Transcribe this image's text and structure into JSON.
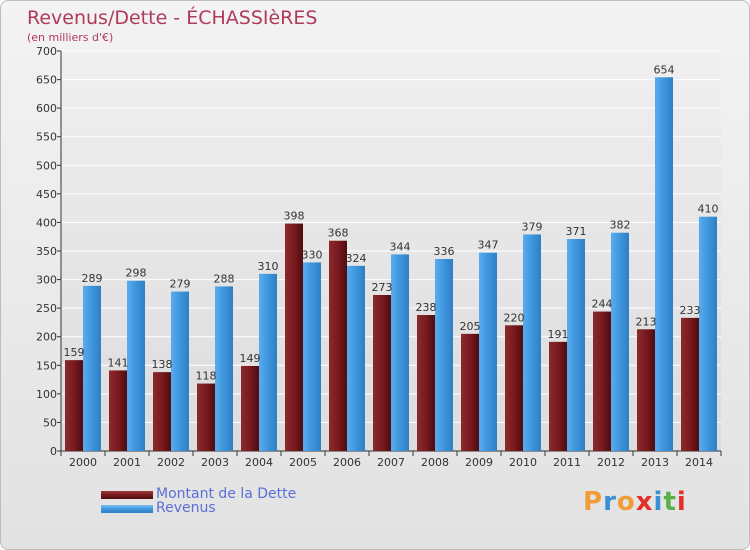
{
  "header": {
    "title": "Revenus/Dette - ÉCHASSIèRES",
    "subtitle": "(en milliers d'€)"
  },
  "brand": {
    "letters": [
      "P",
      "r",
      "o",
      "x",
      "i",
      "t",
      "i"
    ],
    "colors": [
      "#f29c38",
      "#3a8fd6",
      "#f29c38",
      "#e5302a",
      "#3a8fd6",
      "#5bb048",
      "#e5302a"
    ]
  },
  "colors": {
    "dette": "#7a1a1f",
    "revenus": "#3d95dc",
    "grid": "#ffffff",
    "axis": "#333333"
  },
  "chart_data": {
    "type": "bar",
    "categories": [
      "2000",
      "2001",
      "2002",
      "2003",
      "2004",
      "2005",
      "2006",
      "2007",
      "2008",
      "2009",
      "2010",
      "2011",
      "2012",
      "2013",
      "2014"
    ],
    "series": [
      {
        "name": "Montant de la Dette",
        "values": [
          159,
          141,
          138,
          118,
          149,
          398,
          368,
          273,
          238,
          205,
          220,
          191,
          244,
          213,
          233
        ]
      },
      {
        "name": "Revenus",
        "values": [
          289,
          298,
          279,
          288,
          310,
          330,
          324,
          344,
          336,
          347,
          379,
          371,
          382,
          654,
          410
        ]
      }
    ],
    "yticks": [
      0,
      50,
      100,
      150,
      200,
      250,
      300,
      350,
      400,
      450,
      500,
      550,
      600,
      650,
      700
    ],
    "ylim": [
      0,
      700
    ],
    "grid": true,
    "legend_position": "bottom-left",
    "xlabel": "",
    "ylabel": ""
  }
}
